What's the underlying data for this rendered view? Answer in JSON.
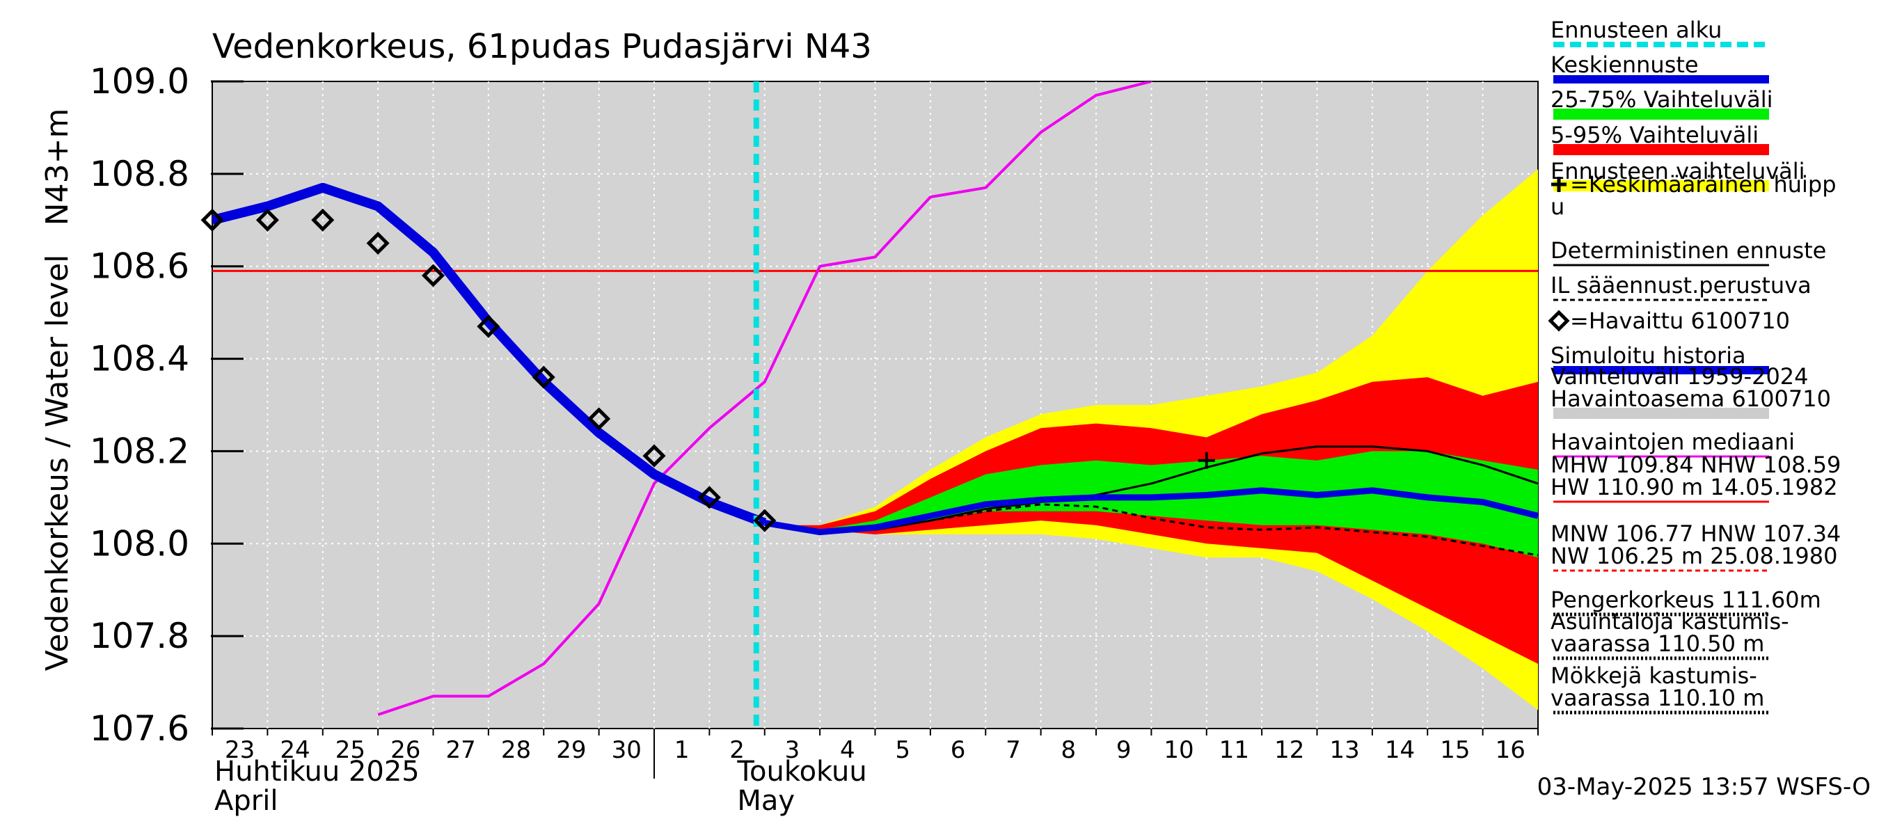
{
  "chart_data": {
    "type": "line",
    "title": "Vedenkorkeus, 61pudas Pudasjärvi N43",
    "ylabel": "Vedenkorkeus / Water level",
    "yunit": "N43+m",
    "ylim": [
      107.6,
      109.0
    ],
    "yticks": [
      107.6,
      107.8,
      108.0,
      108.2,
      108.4,
      108.6,
      108.8,
      109.0
    ],
    "ytick_labels": [
      "107.6",
      "107.8",
      "108.0",
      "108.2",
      "108.4",
      "108.6",
      "108.8",
      "109.0"
    ],
    "xlim": [
      23,
      47
    ],
    "day_labels": [
      "23",
      "24",
      "25",
      "26",
      "27",
      "28",
      "29",
      "30",
      "1",
      "2",
      "3",
      "4",
      "5",
      "6",
      "7",
      "8",
      "9",
      "10",
      "11",
      "12",
      "13",
      "14",
      "15",
      "16"
    ],
    "month_labels": [
      {
        "fi": "Huhtikuu  2025",
        "en": "April",
        "x": 23
      },
      {
        "fi": "Toukokuu",
        "en": "May",
        "x": 32
      }
    ],
    "month_divider_x": 31,
    "forecast_start_x": 33,
    "hline_mhw": 108.59,
    "bands": {
      "x": [
        33,
        34,
        35,
        36,
        37,
        38,
        39,
        40,
        41,
        42,
        43,
        44,
        45,
        46,
        47
      ],
      "ens_low": [
        108.04,
        108.03,
        108.02,
        108.02,
        108.02,
        108.02,
        108.01,
        107.99,
        107.97,
        107.97,
        107.94,
        107.88,
        107.81,
        107.73,
        107.64
      ],
      "ens_high": [
        108.04,
        108.04,
        108.08,
        108.16,
        108.23,
        108.28,
        108.3,
        108.3,
        108.32,
        108.34,
        108.37,
        108.45,
        108.59,
        108.71,
        108.81
      ],
      "p5": [
        108.04,
        108.03,
        108.02,
        108.03,
        108.04,
        108.05,
        108.04,
        108.02,
        108.0,
        107.99,
        107.98,
        107.92,
        107.86,
        107.8,
        107.74
      ],
      "p95": [
        108.04,
        108.04,
        108.07,
        108.14,
        108.2,
        108.25,
        108.26,
        108.25,
        108.23,
        108.28,
        108.31,
        108.35,
        108.36,
        108.32,
        108.35
      ],
      "p25": [
        108.04,
        108.03,
        108.03,
        108.05,
        108.07,
        108.07,
        108.07,
        108.06,
        108.05,
        108.04,
        108.04,
        108.03,
        108.02,
        108.0,
        107.97
      ],
      "p75": [
        108.04,
        108.03,
        108.05,
        108.1,
        108.15,
        108.17,
        108.18,
        108.17,
        108.18,
        108.19,
        108.18,
        108.2,
        108.2,
        108.18,
        108.16
      ]
    },
    "series": [
      {
        "name": "Simuloitu historia",
        "x": [
          23,
          24,
          25,
          26,
          27,
          28,
          29,
          30,
          31,
          32,
          33
        ],
        "values": [
          108.7,
          108.73,
          108.77,
          108.73,
          108.63,
          108.48,
          108.35,
          108.24,
          108.15,
          108.09,
          108.045
        ]
      },
      {
        "name": "Keskiennuste",
        "x": [
          33,
          34,
          35,
          36,
          37,
          38,
          39,
          40,
          41,
          42,
          43,
          44,
          45,
          46,
          47
        ],
        "values": [
          108.045,
          108.025,
          108.035,
          108.06,
          108.085,
          108.095,
          108.1,
          108.1,
          108.105,
          108.115,
          108.105,
          108.115,
          108.1,
          108.09,
          108.06
        ]
      },
      {
        "name": "Deterministinen ennuste",
        "x": [
          33,
          34,
          35,
          36,
          37,
          38,
          39,
          40,
          41,
          42,
          43,
          44,
          45,
          46,
          47
        ],
        "values": [
          108.045,
          108.025,
          108.03,
          108.05,
          108.075,
          108.09,
          108.105,
          108.13,
          108.165,
          108.195,
          108.21,
          108.21,
          108.2,
          108.17,
          108.13
        ]
      },
      {
        "name": "IL sääennust.perustuva",
        "x": [
          33,
          34,
          35,
          36,
          37,
          38,
          39,
          40,
          41,
          42,
          43,
          44,
          45,
          46,
          47
        ],
        "values": [
          108.045,
          108.025,
          108.03,
          108.05,
          108.07,
          108.085,
          108.08,
          108.055,
          108.035,
          108.03,
          108.035,
          108.025,
          108.015,
          107.995,
          107.975
        ]
      },
      {
        "name": "Havaintojen mediaani",
        "x": [
          26,
          27,
          28,
          29,
          30,
          31,
          32,
          33,
          34,
          35,
          36,
          37,
          38,
          39,
          40
        ],
        "values": [
          107.63,
          107.67,
          107.67,
          107.74,
          107.87,
          108.13,
          108.25,
          108.35,
          108.6,
          108.62,
          108.75,
          108.77,
          108.89,
          108.97,
          109.0
        ]
      }
    ],
    "observed": {
      "name": "Havaittu 6100710",
      "x": [
        23,
        24,
        25,
        26,
        27,
        28,
        29,
        30,
        31,
        32,
        33
      ],
      "values": [
        108.7,
        108.7,
        108.7,
        108.65,
        108.58,
        108.47,
        108.36,
        108.27,
        108.19,
        108.1,
        108.05
      ]
    },
    "mean_peak": {
      "x": 41,
      "y": 108.18
    },
    "legend": {
      "placement": "right",
      "items": [
        {
          "key": "forecast_start",
          "lines": [
            "Ennusteen alku"
          ],
          "color": "#00e0e0",
          "style": "dashed-thick"
        },
        {
          "key": "mean_forecast",
          "lines": [
            "Keskiennuste"
          ],
          "color": "#0000dd",
          "style": "thick"
        },
        {
          "key": "p25_75",
          "lines": [
            "25-75% Vaihteluväli"
          ],
          "color": "#00ee00",
          "style": "block"
        },
        {
          "key": "p5_95",
          "lines": [
            "5-95% Vaihteluväli"
          ],
          "color": "#ff0000",
          "style": "block"
        },
        {
          "key": "ens_range",
          "lines": [
            "Ennusteen vaihteluväli"
          ],
          "color": "#ffff00",
          "style": "block"
        },
        {
          "key": "mean_peak",
          "lines": [
            "=Keskimääräinen huipp",
            "u"
          ],
          "color": "#000000",
          "style": "none",
          "glyph": "✚"
        },
        {
          "key": "deterministic",
          "lines": [
            "Deterministinen ennuste"
          ],
          "color": "#000000",
          "style": "thin"
        },
        {
          "key": "il_weather",
          "lines": [
            "IL sääennust.perustuva"
          ],
          "color": "#000000",
          "style": "dashed"
        },
        {
          "key": "observed",
          "lines": [
            "=Havaittu 6100710"
          ],
          "color": "#000000",
          "style": "none",
          "glyph": "◇"
        },
        {
          "key": "sim_history",
          "lines": [
            "Simuloitu historia"
          ],
          "color": "#0000dd",
          "style": "thick"
        },
        {
          "key": "range_hist",
          "lines": [
            "Vaihteluväli 1959-2024",
            " Havaintoasema 6100710"
          ],
          "color": "#cccccc",
          "style": "block"
        },
        {
          "key": "median_obs",
          "lines": [
            "Havaintojen mediaani"
          ],
          "color": "#ee00ee",
          "style": "thin"
        },
        {
          "key": "mhw",
          "lines": [
            "MHW 109.84 NHW 108.59",
            "HW 110.90 m 14.05.1982"
          ],
          "color": "#ff0000",
          "style": "thin"
        },
        {
          "key": "mnw",
          "lines": [
            "MNW 106.77 HNW 107.34",
            "NW 106.25 m 25.08.1980"
          ],
          "color": "#ff0000",
          "style": "dashed"
        },
        {
          "key": "embankment",
          "lines": [
            "Pengerkorkeus 111.60m"
          ],
          "color": "#000000",
          "style": "dotted"
        },
        {
          "key": "houses",
          "lines": [
            "Asuintaloja kastumis-",
            "vaarassa 110.50 m"
          ],
          "color": "#000000",
          "style": "dotted"
        },
        {
          "key": "cottages",
          "lines": [
            "Mökkejä kastumis-",
            "  vaarassa 110.10 m"
          ],
          "color": "#000000",
          "style": "dotted"
        }
      ]
    },
    "footer": "03-May-2025 13:57 WSFS-O"
  }
}
